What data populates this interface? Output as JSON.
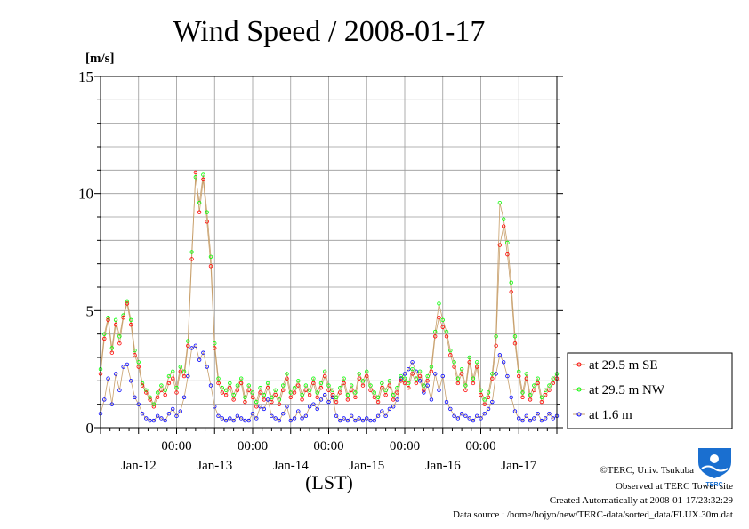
{
  "chart_data": {
    "type": "line",
    "title": "Wind Speed / 2008-01-17",
    "ylabel": "[m/s]",
    "xlabel": "(LST)",
    "ylim": [
      0,
      15
    ],
    "yticks": [
      0,
      5,
      10,
      15
    ],
    "grid": true,
    "legend_position": "right",
    "xlim_days": [
      0,
      6
    ],
    "time_ticks": [
      "00:00",
      "00:00",
      "00:00",
      "00:00",
      "00:00"
    ],
    "day_labels": [
      "Jan-12",
      "Jan-13",
      "Jan-14",
      "Jan-15",
      "Jan-16",
      "Jan-17"
    ],
    "series": [
      {
        "name": "at 29.5 m SE",
        "color": "#ff0000",
        "x": [
          0.0,
          0.05,
          0.1,
          0.15,
          0.2,
          0.25,
          0.3,
          0.35,
          0.4,
          0.45,
          0.5,
          0.55,
          0.6,
          0.65,
          0.7,
          0.75,
          0.8,
          0.85,
          0.9,
          0.95,
          1.0,
          1.05,
          1.1,
          1.15,
          1.2,
          1.25,
          1.3,
          1.35,
          1.4,
          1.45,
          1.5,
          1.55,
          1.6,
          1.65,
          1.7,
          1.75,
          1.8,
          1.85,
          1.9,
          1.95,
          2.0,
          2.05,
          2.1,
          2.15,
          2.2,
          2.25,
          2.3,
          2.35,
          2.4,
          2.45,
          2.5,
          2.55,
          2.6,
          2.65,
          2.7,
          2.75,
          2.8,
          2.85,
          2.9,
          2.95,
          3.0,
          3.05,
          3.1,
          3.15,
          3.2,
          3.25,
          3.3,
          3.35,
          3.4,
          3.45,
          3.5,
          3.55,
          3.6,
          3.65,
          3.7,
          3.75,
          3.8,
          3.85,
          3.9,
          3.95,
          4.0,
          4.05,
          4.1,
          4.15,
          4.2,
          4.25,
          4.3,
          4.35,
          4.4,
          4.45,
          4.5,
          4.55,
          4.6,
          4.65,
          4.7,
          4.75,
          4.8,
          4.85,
          4.9,
          4.95,
          5.0,
          5.05,
          5.1,
          5.15,
          5.2,
          5.25,
          5.3,
          5.35,
          5.4,
          5.45,
          5.5,
          5.55,
          5.6,
          5.65,
          5.7,
          5.75,
          5.8,
          5.85,
          5.9,
          5.95,
          6.0
        ],
        "values": [
          2.3,
          3.8,
          4.6,
          3.2,
          4.4,
          3.6,
          4.7,
          5.3,
          4.4,
          3.1,
          2.6,
          1.8,
          1.5,
          1.2,
          0.9,
          1.3,
          1.6,
          1.4,
          1.9,
          2.1,
          1.5,
          2.4,
          2.2,
          3.5,
          7.2,
          10.9,
          9.2,
          10.6,
          8.8,
          6.9,
          3.4,
          1.9,
          1.5,
          1.4,
          1.7,
          1.2,
          1.6,
          1.9,
          1.1,
          1.6,
          1.3,
          0.9,
          1.5,
          1.2,
          1.7,
          1.1,
          1.4,
          1.0,
          1.6,
          2.1,
          1.3,
          1.5,
          1.8,
          1.2,
          1.6,
          1.4,
          1.9,
          1.3,
          1.7,
          2.2,
          1.6,
          1.4,
          1.1,
          1.5,
          1.9,
          1.2,
          1.6,
          1.3,
          2.1,
          1.8,
          2.2,
          1.6,
          1.3,
          1.1,
          1.7,
          1.4,
          1.8,
          1.2,
          1.5,
          2.0,
          1.9,
          1.7,
          2.3,
          1.9,
          2.2,
          1.6,
          2.0,
          2.4,
          3.9,
          4.7,
          4.3,
          3.9,
          3.1,
          2.6,
          1.9,
          2.3,
          1.6,
          2.8,
          1.9,
          2.6,
          1.4,
          1.0,
          1.3,
          2.1,
          3.5,
          7.8,
          8.6,
          7.4,
          5.8,
          3.6,
          2.2,
          1.3,
          2.1,
          1.2,
          1.6,
          1.9,
          1.1,
          1.4,
          1.6,
          1.9,
          2.1
        ]
      },
      {
        "name": "at 29.5 m NW",
        "color": "#00ff00",
        "x": [
          0.0,
          0.05,
          0.1,
          0.15,
          0.2,
          0.25,
          0.3,
          0.35,
          0.4,
          0.45,
          0.5,
          0.55,
          0.6,
          0.65,
          0.7,
          0.75,
          0.8,
          0.85,
          0.9,
          0.95,
          1.0,
          1.05,
          1.1,
          1.15,
          1.2,
          1.25,
          1.3,
          1.35,
          1.4,
          1.45,
          1.5,
          1.55,
          1.6,
          1.65,
          1.7,
          1.75,
          1.8,
          1.85,
          1.9,
          1.95,
          2.0,
          2.05,
          2.1,
          2.15,
          2.2,
          2.25,
          2.3,
          2.35,
          2.4,
          2.45,
          2.5,
          2.55,
          2.6,
          2.65,
          2.7,
          2.75,
          2.8,
          2.85,
          2.9,
          2.95,
          3.0,
          3.05,
          3.1,
          3.15,
          3.2,
          3.25,
          3.3,
          3.35,
          3.4,
          3.45,
          3.5,
          3.55,
          3.6,
          3.65,
          3.7,
          3.75,
          3.8,
          3.85,
          3.9,
          3.95,
          4.0,
          4.05,
          4.1,
          4.15,
          4.2,
          4.25,
          4.3,
          4.35,
          4.4,
          4.45,
          4.5,
          4.55,
          4.6,
          4.65,
          4.7,
          4.75,
          4.8,
          4.85,
          4.9,
          4.95,
          5.0,
          5.05,
          5.1,
          5.15,
          5.2,
          5.25,
          5.3,
          5.35,
          5.4,
          5.45,
          5.5,
          5.55,
          5.6,
          5.65,
          5.7,
          5.75,
          5.8,
          5.85,
          5.9,
          5.95,
          6.0
        ],
        "values": [
          2.5,
          4.0,
          4.7,
          3.4,
          4.6,
          3.9,
          4.8,
          5.4,
          4.6,
          3.3,
          2.8,
          1.9,
          1.6,
          1.3,
          1.0,
          1.5,
          1.8,
          1.6,
          2.2,
          2.4,
          1.7,
          2.6,
          2.4,
          3.7,
          7.5,
          10.7,
          9.6,
          10.8,
          9.2,
          7.3,
          3.6,
          2.1,
          1.7,
          1.6,
          1.9,
          1.4,
          1.8,
          2.1,
          1.3,
          1.8,
          1.5,
          1.1,
          1.7,
          1.4,
          1.9,
          1.3,
          1.6,
          1.2,
          1.8,
          2.3,
          1.5,
          1.7,
          2.0,
          1.4,
          1.8,
          1.6,
          2.1,
          1.5,
          1.9,
          2.4,
          1.8,
          1.6,
          1.3,
          1.7,
          2.1,
          1.4,
          1.8,
          1.5,
          2.3,
          2.0,
          2.4,
          1.8,
          1.5,
          1.3,
          1.9,
          1.6,
          2.0,
          1.4,
          1.7,
          2.2,
          2.1,
          1.9,
          2.5,
          2.1,
          2.4,
          1.8,
          2.2,
          2.6,
          4.1,
          5.3,
          4.6,
          4.1,
          3.3,
          2.8,
          2.1,
          2.5,
          1.8,
          3.0,
          2.1,
          2.8,
          1.6,
          1.2,
          1.5,
          2.3,
          3.9,
          9.6,
          8.9,
          7.9,
          6.2,
          3.9,
          2.4,
          1.5,
          2.3,
          1.4,
          1.8,
          2.1,
          1.3,
          1.6,
          1.8,
          2.1,
          2.3
        ]
      },
      {
        "name": "at 1.6 m",
        "color": "#0000ff",
        "x": [
          0.0,
          0.05,
          0.1,
          0.15,
          0.2,
          0.25,
          0.3,
          0.35,
          0.4,
          0.45,
          0.5,
          0.55,
          0.6,
          0.65,
          0.7,
          0.75,
          0.8,
          0.85,
          0.9,
          0.95,
          1.0,
          1.05,
          1.1,
          1.15,
          1.2,
          1.25,
          1.3,
          1.35,
          1.4,
          1.45,
          1.5,
          1.55,
          1.6,
          1.65,
          1.7,
          1.75,
          1.8,
          1.85,
          1.9,
          1.95,
          2.0,
          2.05,
          2.1,
          2.15,
          2.2,
          2.25,
          2.3,
          2.35,
          2.4,
          2.45,
          2.5,
          2.55,
          2.6,
          2.65,
          2.7,
          2.75,
          2.8,
          2.85,
          2.9,
          2.95,
          3.0,
          3.05,
          3.1,
          3.15,
          3.2,
          3.25,
          3.3,
          3.35,
          3.4,
          3.45,
          3.5,
          3.55,
          3.6,
          3.65,
          3.7,
          3.75,
          3.8,
          3.85,
          3.9,
          3.95,
          4.0,
          4.05,
          4.1,
          4.15,
          4.2,
          4.25,
          4.3,
          4.35,
          4.4,
          4.45,
          4.5,
          4.55,
          4.6,
          4.65,
          4.7,
          4.75,
          4.8,
          4.85,
          4.9,
          4.95,
          5.0,
          5.05,
          5.1,
          5.15,
          5.2,
          5.25,
          5.3,
          5.35,
          5.4,
          5.45,
          5.5,
          5.55,
          5.6,
          5.65,
          5.7,
          5.75,
          5.8,
          5.85,
          5.9,
          5.95,
          6.0
        ],
        "values": [
          0.6,
          1.2,
          2.1,
          1.0,
          2.3,
          1.6,
          2.6,
          2.7,
          2.0,
          1.3,
          1.0,
          0.6,
          0.4,
          0.3,
          0.3,
          0.5,
          0.4,
          0.3,
          0.6,
          0.8,
          0.5,
          0.7,
          1.3,
          2.2,
          3.4,
          3.5,
          2.9,
          3.2,
          2.6,
          1.8,
          0.9,
          0.5,
          0.4,
          0.3,
          0.4,
          0.3,
          0.5,
          0.4,
          0.3,
          0.3,
          0.6,
          0.4,
          0.9,
          0.8,
          1.2,
          0.5,
          0.4,
          0.3,
          0.6,
          0.9,
          0.3,
          0.4,
          0.7,
          0.4,
          0.5,
          0.9,
          1.0,
          0.8,
          1.2,
          1.4,
          1.1,
          1.3,
          0.5,
          0.3,
          0.4,
          0.3,
          0.5,
          0.3,
          0.4,
          0.3,
          0.4,
          0.3,
          0.3,
          0.5,
          0.7,
          0.5,
          0.8,
          0.9,
          1.2,
          2.1,
          2.3,
          2.5,
          2.8,
          2.4,
          2.0,
          1.5,
          1.8,
          1.2,
          2.3,
          1.6,
          2.2,
          1.1,
          0.8,
          0.5,
          0.4,
          0.6,
          0.5,
          0.4,
          0.3,
          0.5,
          0.4,
          0.6,
          0.8,
          1.1,
          2.3,
          3.1,
          2.8,
          2.2,
          1.3,
          0.7,
          0.4,
          0.3,
          0.5,
          0.3,
          0.4,
          0.6,
          0.3,
          0.4,
          0.6,
          0.4,
          0.5
        ]
      }
    ]
  },
  "credits": {
    "line1": "©TERC, Univ. Tsukuba",
    "line2": "Observed at TERC Tower site",
    "line3": "Created Automatically at 2008-01-17/23:32:29",
    "line4": "Data source : /home/hojyo/new/TERC-data/sorted_data/FLUX.30m.dat"
  },
  "logo": {
    "text": "TERC",
    "color": "#1a6fd0"
  }
}
